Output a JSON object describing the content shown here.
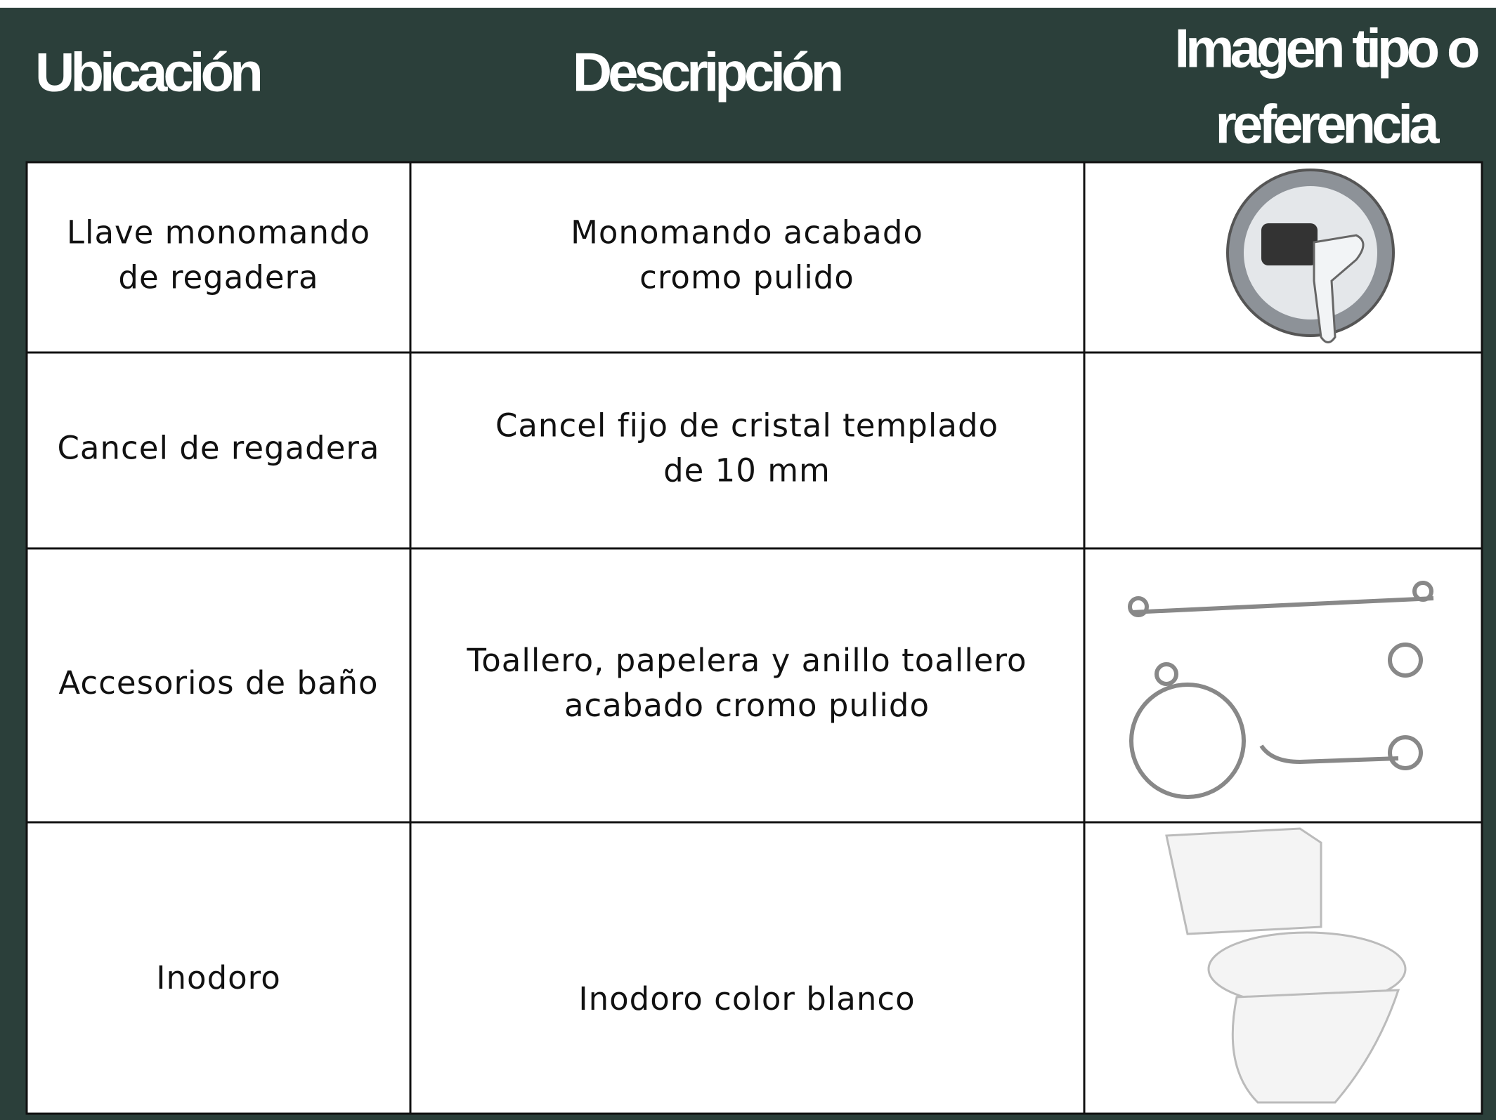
{
  "header": {
    "columns": [
      "Ubicación",
      "Descripción",
      [
        "Imagen tipo o",
        "referencia"
      ]
    ]
  },
  "table": {
    "rows": [
      {
        "location": [
          "Llave monomando",
          "de regadera"
        ],
        "description": [
          "Monomando acabado",
          "cromo pulido"
        ]
      },
      {
        "location": [
          "Cancel de regadera"
        ],
        "description": [
          "Cancel fijo de cristal templado",
          "de 10 mm"
        ]
      },
      {
        "location": [
          "Accesorios de baño"
        ],
        "description": [
          "Toallero, papelera y anillo toallero",
          "acabado cromo pulido"
        ]
      },
      {
        "location": [
          "Inodoro"
        ],
        "description": [
          "Inodoro color blanco"
        ]
      }
    ]
  }
}
